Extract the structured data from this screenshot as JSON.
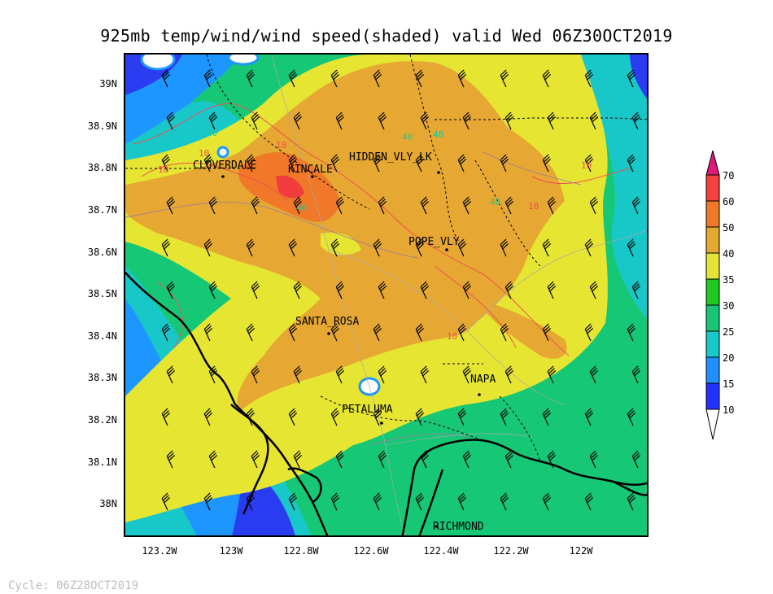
{
  "title": "925mb temp/wind/wind speed(shaded) valid Wed 06Z30OCT2019",
  "footer": "Cycle: 06Z28OCT2019",
  "lat_labels": [
    "39N",
    "38.9N",
    "38.8N",
    "38.7N",
    "38.6N",
    "38.5N",
    "38.4N",
    "38.3N",
    "38.2N",
    "38.1N",
    "38N"
  ],
  "lon_labels": [
    "123.2W",
    "123W",
    "122.8W",
    "122.6W",
    "122.4W",
    "122.2W",
    "122W"
  ],
  "cities": [
    {
      "name": "CLOVERDALE",
      "label": "CLOVERDALE"
    },
    {
      "name": "KINCALE",
      "label": "KINCALE"
    },
    {
      "name": "HIDDEN_VLY_LK",
      "label": "HIDDEN_VLY_LK"
    },
    {
      "name": "POPE_VLY",
      "label": "POPE_VLY"
    },
    {
      "name": "SANTA_ROSA",
      "label": "SANTA_ROSA"
    },
    {
      "name": "NAPA",
      "label": "NAPA"
    },
    {
      "name": "PETALUMA",
      "label": "PETALUMA"
    },
    {
      "name": "RICHMOND",
      "label": "RICHMOND"
    }
  ],
  "contour_labels": [
    "10",
    "40",
    "10",
    "40",
    "10",
    "40",
    "40",
    "10",
    "40",
    "10",
    "10"
  ],
  "legend": {
    "levels": [
      "10",
      "15",
      "20",
      "25",
      "30",
      "35",
      "40",
      "50",
      "60",
      "70"
    ],
    "colors": [
      "#ffffff",
      "#2030ff",
      "#1e90ff",
      "#19c8c8",
      "#16c876",
      "#20c820",
      "#e3e338",
      "#e3a830",
      "#f07828",
      "#f54040",
      "#e0187a"
    ]
  },
  "colors": {
    "c10": "#2a3cf0",
    "c15": "#1e96ff",
    "c20": "#18c8c8",
    "c25": "#14c880",
    "c30": "#18c818",
    "c35": "#e6e632",
    "c40": "#e6a832",
    "c50": "#f07828",
    "c60": "#f03c3c"
  }
}
